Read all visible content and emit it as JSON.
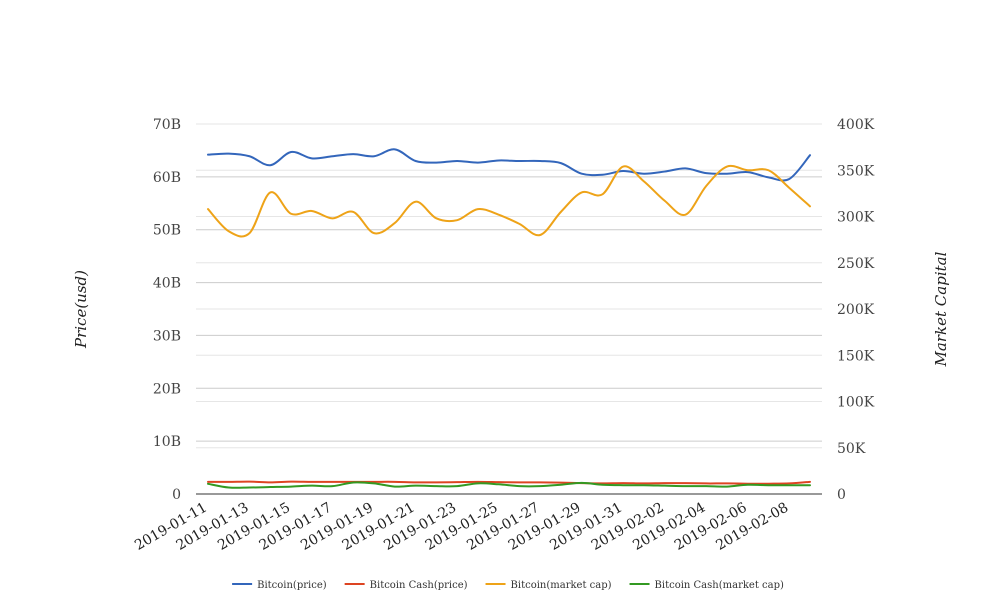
{
  "chart_data": {
    "type": "line",
    "ylabel_left": "Price(usd)",
    "ylabel_right": "Market Capital",
    "ylim_left": [
      0,
      70000000000
    ],
    "ylim_right": [
      0,
      400000
    ],
    "left_ticks": [
      {
        "value": 0,
        "label": "0"
      },
      {
        "value": 10000000000,
        "label": "10B"
      },
      {
        "value": 20000000000,
        "label": "20B"
      },
      {
        "value": 30000000000,
        "label": "30B"
      },
      {
        "value": 40000000000,
        "label": "40B"
      },
      {
        "value": 50000000000,
        "label": "50B"
      },
      {
        "value": 60000000000,
        "label": "60B"
      },
      {
        "value": 70000000000,
        "label": "70B"
      }
    ],
    "right_ticks": [
      {
        "value": 0,
        "label": "0"
      },
      {
        "value": 50000,
        "label": "50K"
      },
      {
        "value": 100000,
        "label": "100K"
      },
      {
        "value": 150000,
        "label": "150K"
      },
      {
        "value": 200000,
        "label": "200K"
      },
      {
        "value": 250000,
        "label": "250K"
      },
      {
        "value": 300000,
        "label": "300K"
      },
      {
        "value": 350000,
        "label": "350K"
      },
      {
        "value": 400000,
        "label": "400K"
      }
    ],
    "x": [
      "2019-01-11",
      "2019-01-12",
      "2019-01-13",
      "2019-01-14",
      "2019-01-15",
      "2019-01-16",
      "2019-01-17",
      "2019-01-18",
      "2019-01-19",
      "2019-01-20",
      "2019-01-21",
      "2019-01-22",
      "2019-01-23",
      "2019-01-24",
      "2019-01-25",
      "2019-01-26",
      "2019-01-27",
      "2019-01-28",
      "2019-01-29",
      "2019-01-30",
      "2019-01-31",
      "2019-02-01",
      "2019-02-02",
      "2019-02-03",
      "2019-02-04",
      "2019-02-05",
      "2019-02-06",
      "2019-02-07",
      "2019-02-08",
      "2019-02-09"
    ],
    "x_tick_labels": [
      "2019-01-11",
      "2019-01-13",
      "2019-01-15",
      "2019-01-17",
      "2019-01-19",
      "2019-01-21",
      "2019-01-23",
      "2019-01-25",
      "2019-01-27",
      "2019-01-29",
      "2019-01-31",
      "2019-02-02",
      "2019-02-04",
      "2019-02-06",
      "2019-02-08"
    ],
    "series": [
      {
        "name": "Bitcoin(price)",
        "axis": "left",
        "color": "#3366bb",
        "values": [
          64200000000,
          64400000000,
          63900000000,
          62200000000,
          64700000000,
          63500000000,
          63900000000,
          64300000000,
          63900000000,
          65200000000,
          63000000000,
          62700000000,
          63000000000,
          62700000000,
          63100000000,
          63000000000,
          63000000000,
          62600000000,
          60600000000,
          60400000000,
          61100000000,
          60600000000,
          61000000000,
          61600000000,
          60700000000,
          60600000000,
          60900000000,
          59900000000,
          59600000000,
          64100000000
        ]
      },
      {
        "name": "Bitcoin Cash(price)",
        "axis": "left",
        "color": "#dd4422",
        "values": [
          2300000000,
          2300000000,
          2350000000,
          2200000000,
          2350000000,
          2300000000,
          2300000000,
          2300000000,
          2300000000,
          2300000000,
          2200000000,
          2200000000,
          2250000000,
          2300000000,
          2250000000,
          2200000000,
          2200000000,
          2150000000,
          2050000000,
          2000000000,
          2050000000,
          2000000000,
          2050000000,
          2050000000,
          2000000000,
          2000000000,
          1950000000,
          1950000000,
          2000000000,
          2300000000
        ]
      },
      {
        "name": "Bitcoin(market cap)",
        "axis": "right",
        "color": "#eea318",
        "values": [
          308000,
          284000,
          282000,
          326000,
          303000,
          306000,
          298000,
          305000,
          282000,
          293000,
          316000,
          298000,
          296000,
          308000,
          302000,
          292000,
          280000,
          305000,
          326000,
          324000,
          354000,
          338000,
          317000,
          302000,
          333000,
          354000,
          350000,
          350000,
          331000,
          311000
        ]
      },
      {
        "name": "Bitcoin Cash(market cap)",
        "axis": "right",
        "color": "#339922",
        "values": [
          11000,
          7000,
          7000,
          7500,
          8000,
          9000,
          8500,
          12500,
          11500,
          8000,
          9000,
          8500,
          8500,
          11500,
          10500,
          8500,
          8500,
          10000,
          12000,
          10000,
          9500,
          9500,
          9000,
          8500,
          8500,
          8000,
          10000,
          9500,
          9500,
          9500
        ]
      }
    ],
    "legend_position": "bottom-center",
    "grid": true
  }
}
